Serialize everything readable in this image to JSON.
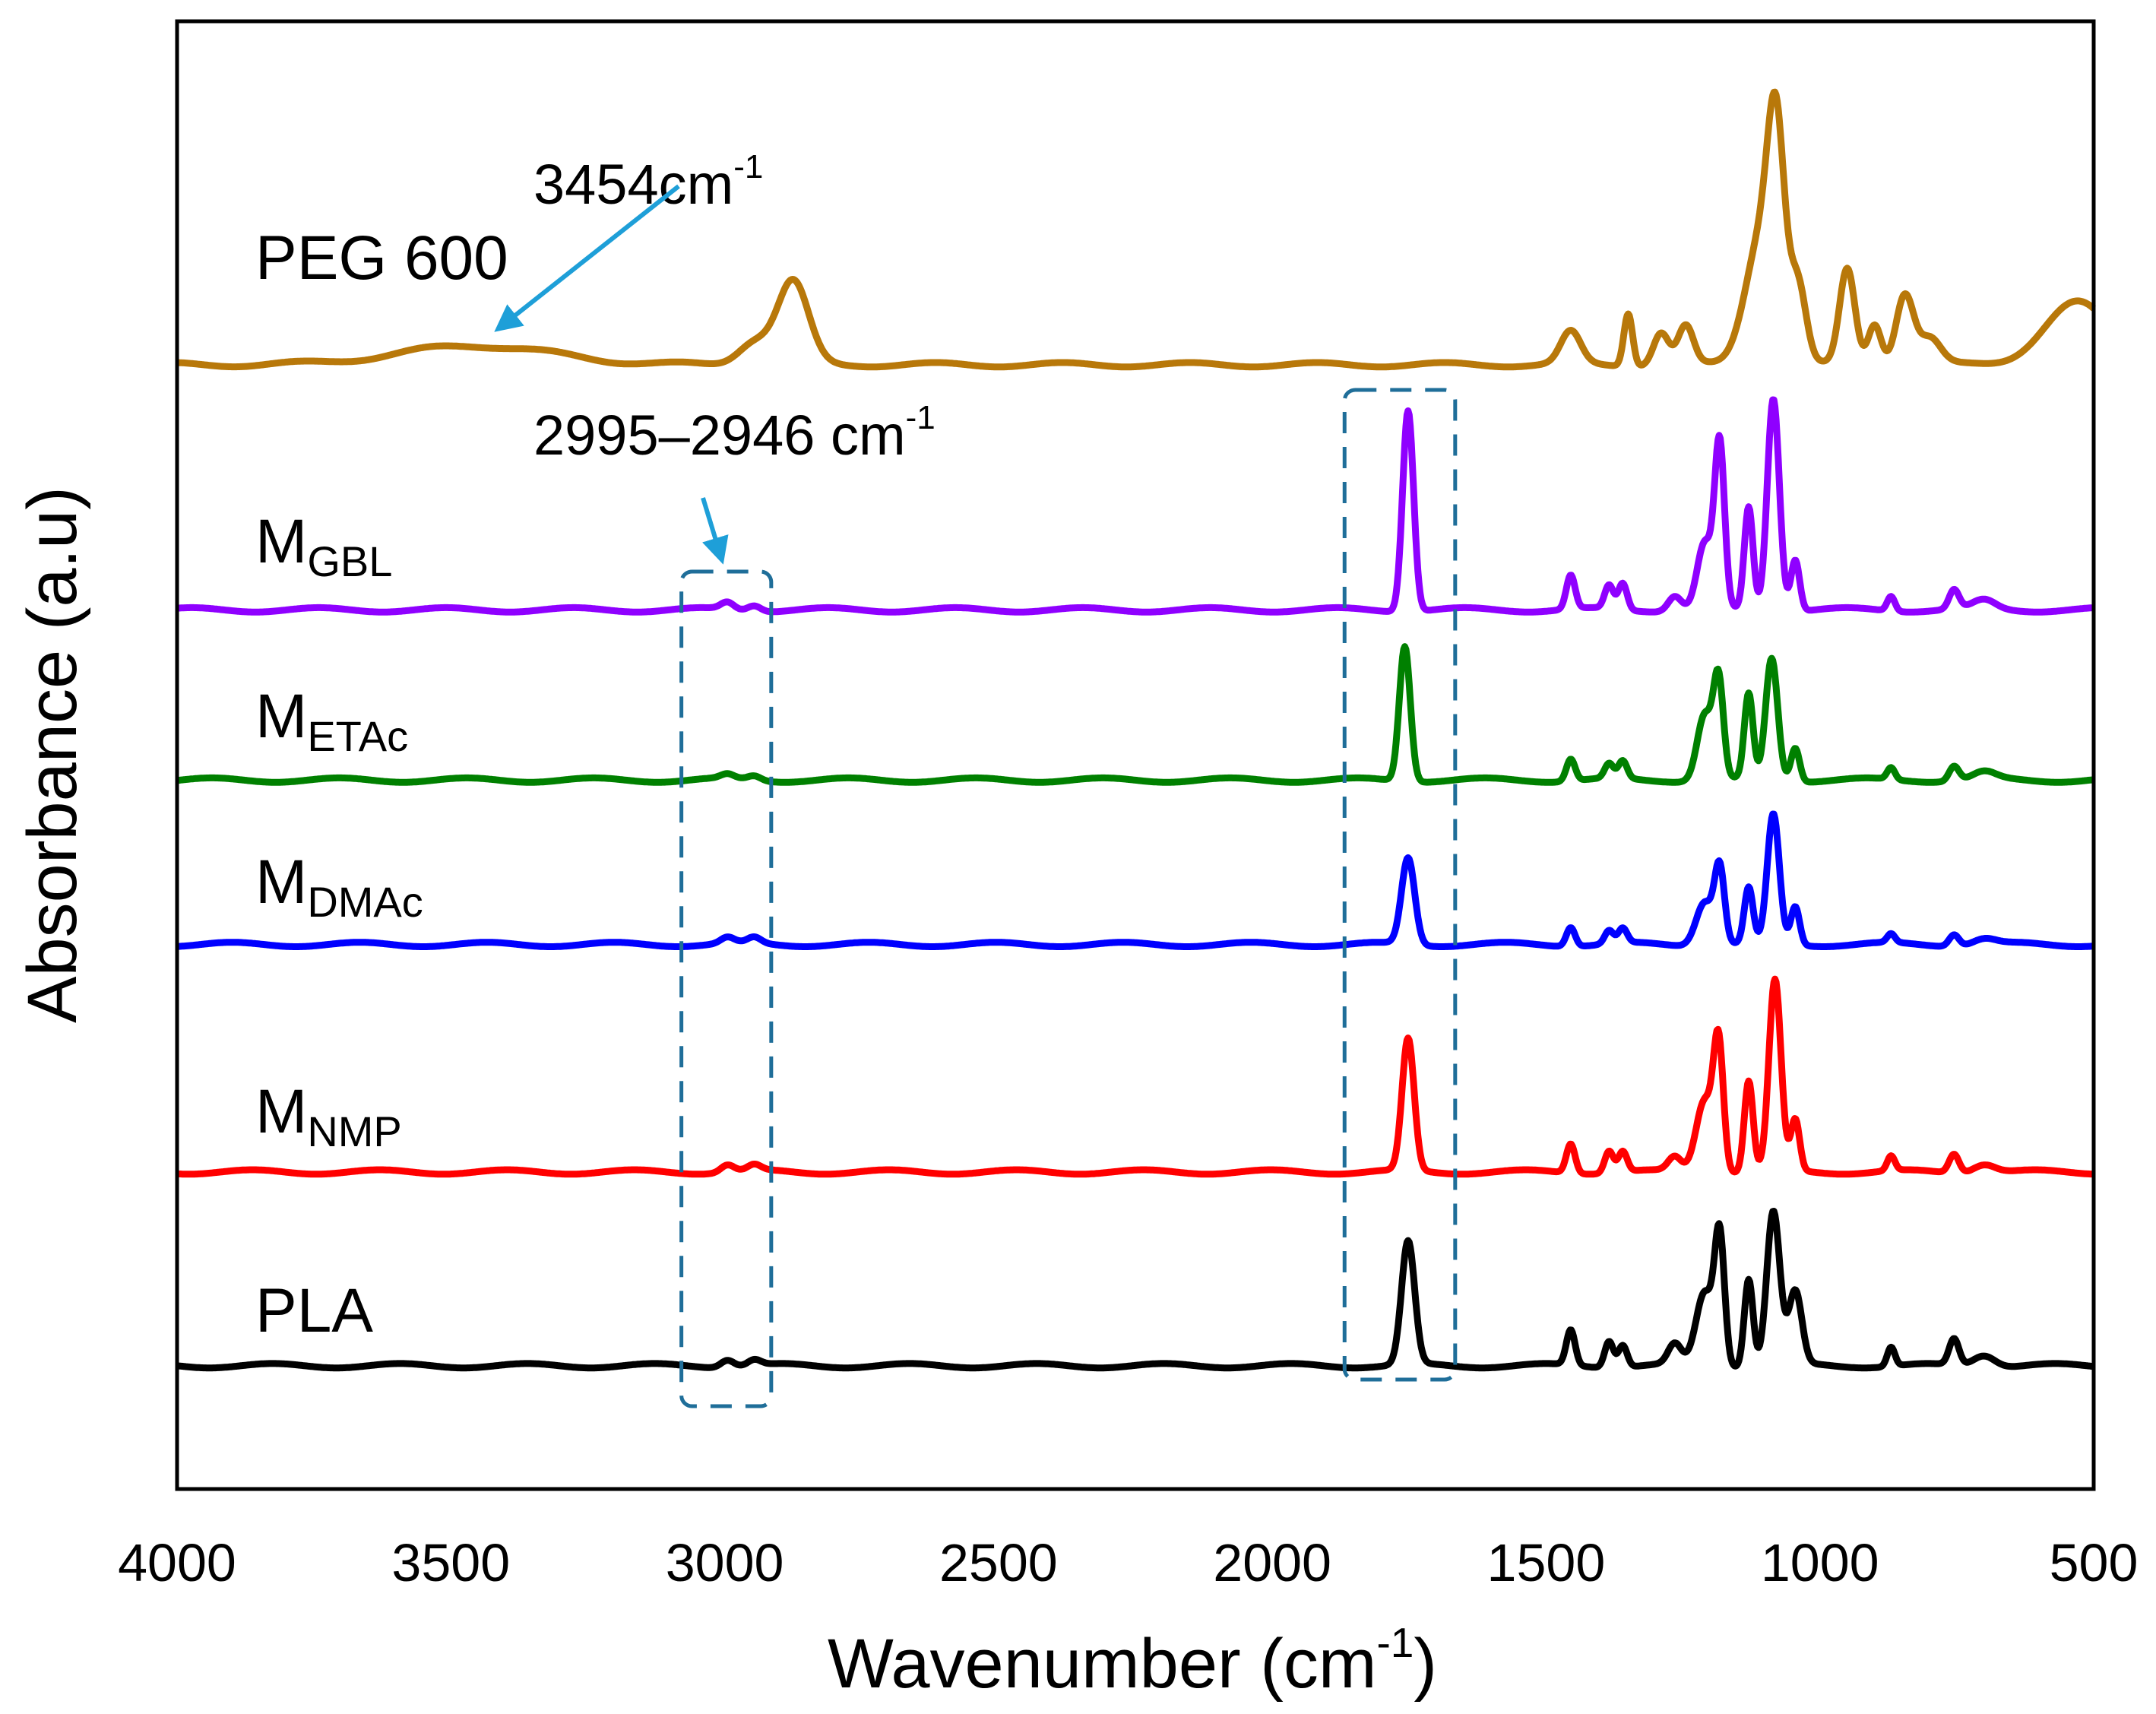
{
  "chart_data": {
    "type": "line",
    "title": "",
    "xlabel": "Wavenumber (cm",
    "xlabel_sup": "-1",
    "xlabel_close": ")",
    "ylabel": "Absorbance (a.u)",
    "xlim": [
      4000,
      500
    ],
    "ylim": [
      0,
      100
    ],
    "xticks": [
      "4000",
      "3500",
      "3000",
      "2500",
      "2000",
      "1500",
      "1000",
      "500"
    ],
    "xtick_values": [
      4000,
      3500,
      3000,
      2500,
      2000,
      1500,
      1000,
      500
    ],
    "grid": false,
    "legend": "inline labels left of each trace",
    "series": [
      {
        "name": "PEG 600",
        "label_main": "PEG 600",
        "label_sub": "",
        "color": "#B8780A",
        "baseline": 76.6,
        "peaks": [
          [
            3454,
            1.3,
            140
          ],
          [
            2945,
            1.6,
            30
          ],
          [
            2875,
            5.6,
            28
          ],
          [
            1455,
            2.2,
            18
          ],
          [
            1350,
            3.6,
            8
          ],
          [
            1290,
            2.2,
            14
          ],
          [
            1245,
            2.6,
            14
          ],
          [
            1105,
            9,
            30
          ],
          [
            1080,
            12,
            15
          ],
          [
            1040,
            5,
            15
          ],
          [
            950,
            6.5,
            14
          ],
          [
            900,
            2.8,
            12
          ],
          [
            845,
            4.8,
            16
          ],
          [
            800,
            1.8,
            20
          ],
          [
            530,
            4.2,
            60
          ]
        ]
      },
      {
        "name": "MGBL",
        "label_main": "M",
        "label_sub": "GBL",
        "color": "#8F00FF",
        "baseline": 59.9,
        "peaks": [
          [
            2995,
            0.5,
            12
          ],
          [
            2946,
            0.4,
            12
          ],
          [
            1752,
            13.7,
            10
          ],
          [
            1455,
            2.3,
            8
          ],
          [
            1385,
            1.6,
            8
          ],
          [
            1360,
            1.8,
            8
          ],
          [
            1265,
            1.0,
            12
          ],
          [
            1210,
            4.5,
            14
          ],
          [
            1183,
            11,
            9
          ],
          [
            1130,
            7.0,
            8
          ],
          [
            1085,
            14.5,
            11
          ],
          [
            1045,
            3.5,
            8
          ],
          [
            870,
            1.0,
            7
          ],
          [
            755,
            1.3,
            9
          ],
          [
            700,
            0.6,
            20
          ]
        ]
      },
      {
        "name": "METAc",
        "label_main": "M",
        "label_sub": "ETAc",
        "color": "#008000",
        "baseline": 48.3,
        "peaks": [
          [
            2995,
            0.3,
            12
          ],
          [
            2946,
            0.3,
            12
          ],
          [
            1758,
            9.2,
            10
          ],
          [
            1455,
            1.5,
            8
          ],
          [
            1385,
            1.0,
            8
          ],
          [
            1360,
            1.2,
            8
          ],
          [
            1210,
            4.5,
            14
          ],
          [
            1185,
            6.5,
            9
          ],
          [
            1130,
            5.8,
            8
          ],
          [
            1088,
            8.3,
            11
          ],
          [
            1045,
            2.3,
            8
          ],
          [
            870,
            0.8,
            7
          ],
          [
            755,
            1.0,
            9
          ],
          [
            700,
            0.5,
            20
          ]
        ]
      },
      {
        "name": "MDMAc",
        "label_main": "M",
        "label_sub": "DMAc",
        "color": "#0000FF",
        "baseline": 37.1,
        "peaks": [
          [
            2995,
            0.4,
            12
          ],
          [
            2946,
            0.4,
            12
          ],
          [
            1752,
            5.9,
            12
          ],
          [
            1455,
            1.3,
            8
          ],
          [
            1385,
            0.9,
            8
          ],
          [
            1360,
            1.0,
            8
          ],
          [
            1210,
            3.0,
            16
          ],
          [
            1183,
            5.0,
            9
          ],
          [
            1130,
            3.8,
            8
          ],
          [
            1085,
            8.8,
            11
          ],
          [
            1045,
            2.6,
            8
          ],
          [
            870,
            0.6,
            7
          ],
          [
            755,
            0.8,
            9
          ],
          [
            700,
            0.4,
            20
          ]
        ]
      },
      {
        "name": "MNMP",
        "label_main": "M",
        "label_sub": "NMP",
        "color": "#FF0000",
        "baseline": 21.6,
        "peaks": [
          [
            2995,
            0.5,
            12
          ],
          [
            2946,
            0.4,
            12
          ],
          [
            1752,
            9.0,
            11
          ],
          [
            1455,
            2.0,
            8
          ],
          [
            1385,
            1.5,
            8
          ],
          [
            1360,
            1.4,
            8
          ],
          [
            1265,
            1.0,
            12
          ],
          [
            1210,
            5.0,
            16
          ],
          [
            1185,
            8.3,
            9
          ],
          [
            1130,
            6.2,
            8
          ],
          [
            1082,
            13.0,
            11
          ],
          [
            1045,
            3.5,
            8
          ],
          [
            870,
            1.0,
            7
          ],
          [
            755,
            1.3,
            9
          ],
          [
            700,
            0.6,
            20
          ]
        ]
      },
      {
        "name": "PLA",
        "label_main": "PLA",
        "label_sub": "",
        "color": "#000000",
        "baseline": 8.4,
        "peaks": [
          [
            2995,
            0.5,
            12
          ],
          [
            2946,
            0.4,
            12
          ],
          [
            1752,
            8.4,
            12
          ],
          [
            1455,
            2.4,
            8
          ],
          [
            1385,
            1.8,
            8
          ],
          [
            1360,
            1.5,
            8
          ],
          [
            1265,
            1.4,
            12
          ],
          [
            1210,
            5.0,
            16
          ],
          [
            1183,
            8.5,
            9
          ],
          [
            1130,
            6.0,
            8
          ],
          [
            1085,
            10.5,
            12
          ],
          [
            1045,
            5.0,
            12
          ],
          [
            870,
            1.3,
            7
          ],
          [
            755,
            1.8,
            9
          ],
          [
            700,
            0.8,
            20
          ]
        ]
      }
    ],
    "annotations": [
      {
        "text": "3454cm",
        "sup": "-1",
        "target_x": 3454
      },
      {
        "text": "2995–2946 cm",
        "sup": "-1",
        "target_x": 2970
      }
    ],
    "highlight_boxes": [
      {
        "x_range": [
          3079,
          2915
        ]
      },
      {
        "x_range": [
          1868,
          1666
        ]
      }
    ],
    "annotation_color": "#1E9FD8",
    "box_color": "#1F6E99"
  }
}
